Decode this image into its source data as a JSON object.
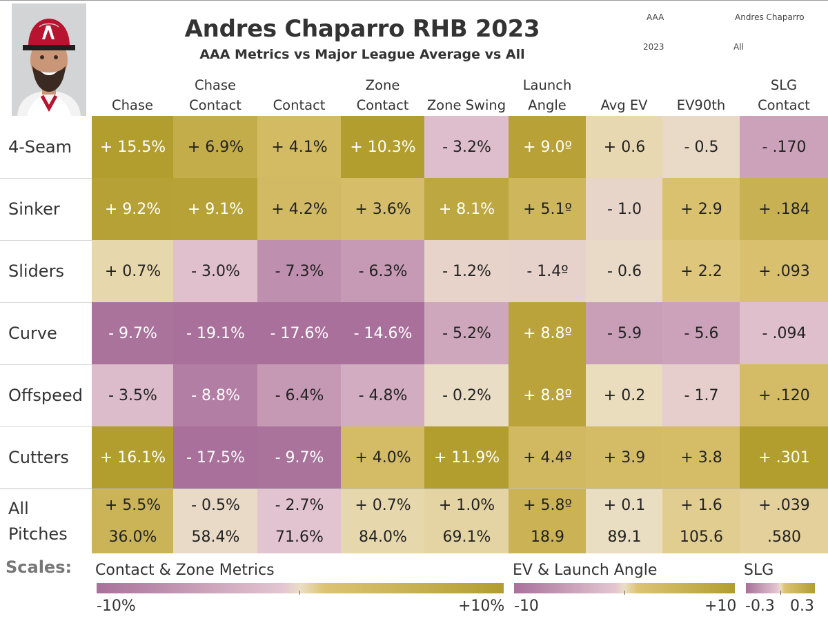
{
  "header": {
    "title": "Andres Chaparro RHB 2023",
    "subtitle": "AAA Metrics vs Major League Average vs All",
    "filters": {
      "level": "AAA",
      "player": "Andres Chaparro",
      "year": "2023",
      "scope": "All"
    }
  },
  "colors": {
    "pink_dark": "#a8709a",
    "pink_light": "#e4c6d1",
    "neutral": "#eadfc4",
    "gold_light": "#dcc373",
    "gold_dark": "#b29d2f"
  },
  "chart_data": {
    "type": "heatmap",
    "columns": [
      {
        "label": [
          "Chase"
        ],
        "scale": "contact_zone"
      },
      {
        "label": [
          "Chase",
          "Contact"
        ],
        "scale": "contact_zone"
      },
      {
        "label": [
          "Contact"
        ],
        "scale": "contact_zone"
      },
      {
        "label": [
          "Zone",
          "Contact"
        ],
        "scale": "contact_zone"
      },
      {
        "label": [
          "Zone Swing"
        ],
        "scale": "contact_zone"
      },
      {
        "label": [
          "Launch",
          "Angle"
        ],
        "scale": "ev_la"
      },
      {
        "label": [
          "Avg EV"
        ],
        "scale": "ev_la"
      },
      {
        "label": [
          "EV90th"
        ],
        "scale": "ev_la"
      },
      {
        "label": [
          "SLG",
          "Contact"
        ],
        "scale": "slg"
      }
    ],
    "rows": [
      {
        "label": "4-Seam",
        "values": [
          15.5,
          6.9,
          4.1,
          10.3,
          -3.2,
          9.0,
          0.6,
          -0.5,
          -0.17
        ],
        "display": [
          "+ 15.5%",
          "+ 6.9%",
          "+ 4.1%",
          "+ 10.3%",
          "- 3.2%",
          "+ 9.0º",
          "+ 0.6",
          "- 0.5",
          "- .170"
        ]
      },
      {
        "label": "Sinker",
        "values": [
          9.2,
          9.1,
          4.2,
          3.6,
          8.1,
          5.1,
          -1.0,
          2.9,
          0.184
        ],
        "display": [
          "+ 9.2%",
          "+ 9.1%",
          "+ 4.2%",
          "+ 3.6%",
          "+ 8.1%",
          "+ 5.1º",
          "- 1.0",
          "+ 2.9",
          "+ .184"
        ]
      },
      {
        "label": "Sliders",
        "values": [
          0.7,
          -3.0,
          -7.3,
          -6.3,
          -1.2,
          -1.4,
          -0.6,
          2.2,
          0.093
        ],
        "display": [
          "+ 0.7%",
          "- 3.0%",
          "- 7.3%",
          "- 6.3%",
          "- 1.2%",
          "- 1.4º",
          "- 0.6",
          "+ 2.2",
          "+ .093"
        ]
      },
      {
        "label": "Curve",
        "values": [
          -9.7,
          -19.1,
          -17.6,
          -14.6,
          -5.2,
          8.8,
          -5.9,
          -5.6,
          -0.094
        ],
        "display": [
          "- 9.7%",
          "- 19.1%",
          "- 17.6%",
          "- 14.6%",
          "- 5.2%",
          "+ 8.8º",
          "- 5.9",
          "- 5.6",
          "- .094"
        ]
      },
      {
        "label": "Offspeed",
        "values": [
          -3.5,
          -8.8,
          -6.4,
          -4.8,
          -0.2,
          8.8,
          0.2,
          -1.7,
          0.12
        ],
        "display": [
          "- 3.5%",
          "- 8.8%",
          "- 6.4%",
          "- 4.8%",
          "- 0.2%",
          "+ 8.8º",
          "+ 0.2",
          "- 1.7",
          "+ .120"
        ]
      },
      {
        "label": "Cutters",
        "values": [
          16.1,
          -17.5,
          -9.7,
          4.0,
          11.9,
          4.4,
          3.9,
          3.8,
          0.301
        ],
        "display": [
          "+ 16.1%",
          "- 17.5%",
          "- 9.7%",
          "+ 4.0%",
          "+ 11.9%",
          "+ 4.4º",
          "+ 3.9",
          "+ 3.8",
          "+ .301"
        ]
      }
    ],
    "all_row": {
      "label": [
        "All",
        "Pitches"
      ],
      "values": [
        5.5,
        -0.5,
        -2.7,
        0.7,
        1.0,
        5.8,
        0.1,
        1.6,
        0.039
      ],
      "display": [
        "+ 5.5%",
        "- 0.5%",
        "- 2.7%",
        "+ 0.7%",
        "+ 1.0%",
        "+ 5.8º",
        "+ 0.1",
        "+ 1.6",
        "+ .039"
      ],
      "absolute": [
        "36.0%",
        "58.4%",
        "71.6%",
        "84.0%",
        "69.1%",
        "18.9",
        "89.1",
        "105.6",
        ".580"
      ]
    },
    "scales": {
      "label": "Scales:",
      "contact_zone": {
        "title": "Contact & Zone Metrics",
        "min": -10,
        "max": 10,
        "min_label": "-10%",
        "max_label": "+10%"
      },
      "ev_la": {
        "title": "EV & Launch Angle",
        "min": -10,
        "max": 10,
        "min_label": "-10",
        "max_label": "+10"
      },
      "slg": {
        "title": "SLG",
        "min": -0.3,
        "max": 0.3,
        "min_label": "-0.3",
        "max_label": "0.3"
      }
    }
  }
}
